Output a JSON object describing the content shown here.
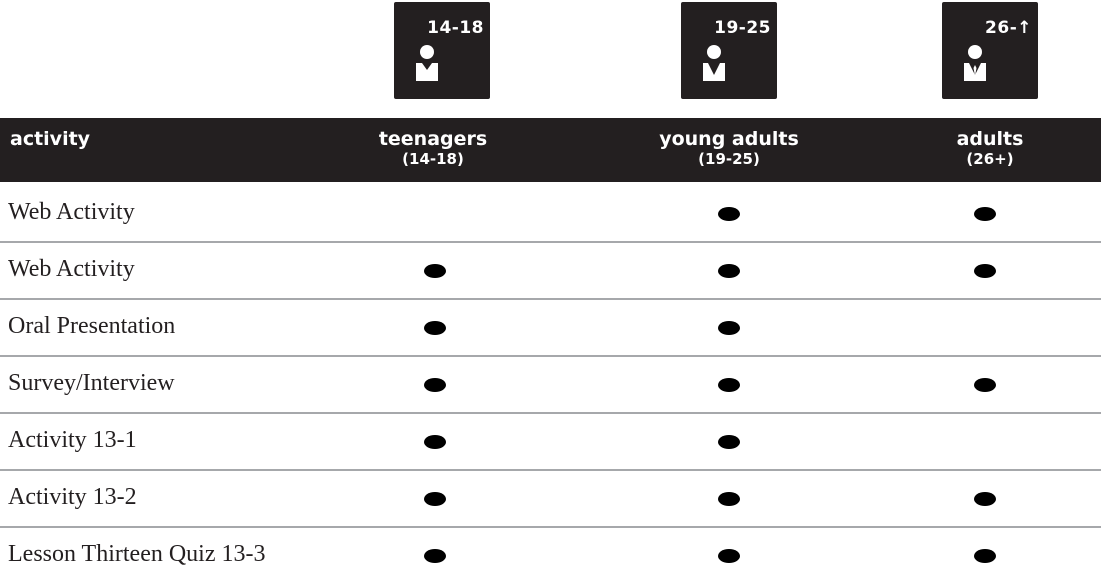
{
  "badges": [
    {
      "label": "14-18",
      "icon": "person-icon"
    },
    {
      "label": "19-25",
      "icon": "person-icon"
    },
    {
      "label": "26-↑",
      "icon": "person-with-tie-icon"
    }
  ],
  "header": {
    "activity": "activity",
    "teenagers": {
      "main": "teenagers",
      "sub": "(14-18)"
    },
    "young_adults": {
      "main": "young adults",
      "sub": "(19-25)"
    },
    "adults": {
      "main": "adults",
      "sub": "(26+)"
    }
  },
  "rows": [
    {
      "label": "Web Activity",
      "teenagers": false,
      "young_adults": true,
      "adults": true
    },
    {
      "label": "Web Activity",
      "teenagers": true,
      "young_adults": true,
      "adults": true
    },
    {
      "label": "Oral Presentation",
      "teenagers": true,
      "young_adults": true,
      "adults": false
    },
    {
      "label": "Survey/Interview",
      "teenagers": true,
      "young_adults": true,
      "adults": true
    },
    {
      "label": "Activity 13-1",
      "teenagers": true,
      "young_adults": true,
      "adults": false
    },
    {
      "label": "Activity 13-2",
      "teenagers": true,
      "young_adults": true,
      "adults": true
    },
    {
      "label": "Lesson Thirteen Quiz 13-3",
      "teenagers": true,
      "young_adults": true,
      "adults": true
    }
  ],
  "colors": {
    "dark": "#231f20",
    "divider": "#a6a8ab"
  }
}
